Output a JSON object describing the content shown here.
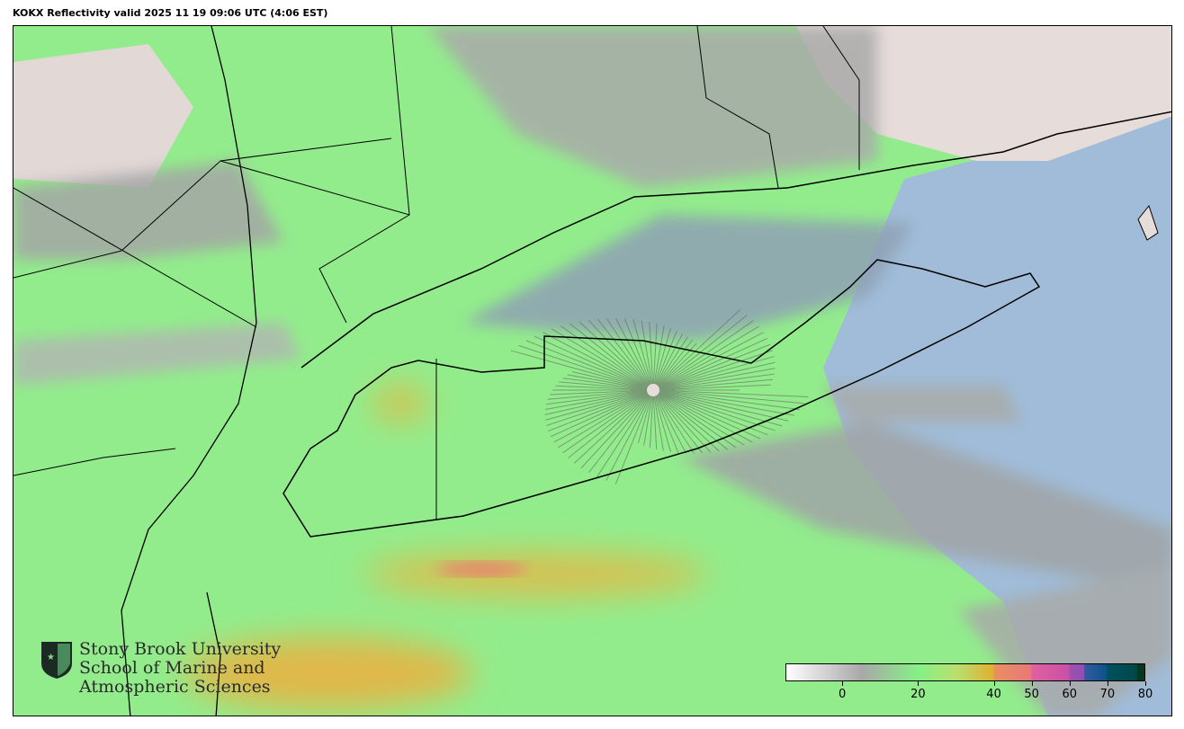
{
  "title": "KOKX Reflectivity valid 2025 11 19 09:06 UTC (4:06 EST)",
  "logo": {
    "line1": "Stony Brook University",
    "line2": "School of Marine and",
    "line3": "Atmospheric Sciences"
  },
  "colorbar": {
    "range": [
      -15,
      80
    ],
    "ticks": [
      {
        "value": 0,
        "label": "0"
      },
      {
        "value": 20,
        "label": "20"
      },
      {
        "value": 40,
        "label": "40"
      },
      {
        "value": 50,
        "label": "50"
      },
      {
        "value": 60,
        "label": "60"
      },
      {
        "value": 70,
        "label": "70"
      },
      {
        "value": 80,
        "label": "80"
      }
    ],
    "stops": [
      {
        "value": -15,
        "color": "#ffffff"
      },
      {
        "value": 5,
        "color": "#a8a8a8"
      },
      {
        "value": 20,
        "color": "#86f086"
      },
      {
        "value": 30,
        "color": "#b8e070"
      },
      {
        "value": 40,
        "color": "#e0b030"
      },
      {
        "value": 40.1,
        "color": "#e89060"
      },
      {
        "value": 50,
        "color": "#e87878"
      },
      {
        "value": 50.1,
        "color": "#e060a0"
      },
      {
        "value": 60,
        "color": "#c850a8"
      },
      {
        "value": 60.1,
        "color": "#a050b0"
      },
      {
        "value": 64,
        "color": "#9050b0"
      },
      {
        "value": 64.1,
        "color": "#305ca0"
      },
      {
        "value": 70,
        "color": "#10508a"
      },
      {
        "value": 70.1,
        "color": "#005060"
      },
      {
        "value": 78,
        "color": "#004848"
      },
      {
        "value": 78.1,
        "color": "#003820"
      },
      {
        "value": 80,
        "color": "#003820"
      }
    ]
  },
  "colors": {
    "ocean": "#a0bcd8",
    "land": "#e6dcda",
    "light_echo": "#86f086",
    "clutter": "#a8a8a8"
  }
}
